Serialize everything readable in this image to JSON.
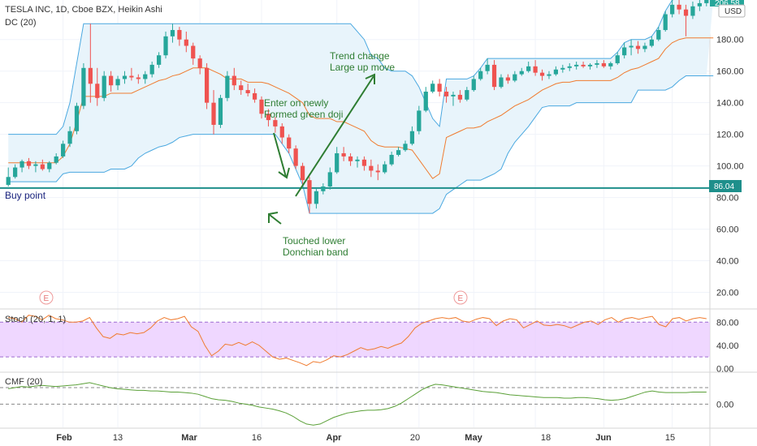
{
  "header": {
    "title": "TESLA INC, 1D, Cboe BZX, Heikin Ashi",
    "indicator": "DC (20)",
    "currency": "USD",
    "last_price_partial": "206.58"
  },
  "colors": {
    "up": "#26a69a",
    "down": "#ef5350",
    "donchian_band": "#4aa8e0",
    "donchian_fill": "#e8f4fb",
    "donchian_mid": "#f07b2f",
    "buy_line": "#1e8f8b",
    "annotation": "#2e7d32",
    "stoch": "#f07b2f",
    "stoch_band": "#e9c9ff",
    "cmf": "#5aa037",
    "axis_text": "#333333"
  },
  "annotations": {
    "buy_point": "Buy point",
    "buy_price": "86.04",
    "doji": [
      "Enter on newly",
      "Formed green doji"
    ],
    "trend": [
      "Trend change",
      "Large up move"
    ],
    "touched": [
      "Touched lower",
      "Donchian band"
    ],
    "earnings_marker": "E"
  },
  "chart_data": [
    {
      "type": "candlestick",
      "title": "TESLA INC, 1D, Cboe BZX, Heikin Ashi",
      "ylabel": "USD",
      "ylim": [
        10,
        205
      ],
      "yticks": [
        20,
        40,
        60,
        80,
        100,
        120,
        140,
        160,
        180
      ],
      "xticks": [
        "Feb",
        "13",
        "Mar",
        "16",
        "Apr",
        "20",
        "May",
        "18",
        "Jun",
        "15"
      ],
      "hline": 86.04,
      "candles": [
        {
          "o": 88,
          "h": 99,
          "l": 87,
          "c": 93
        },
        {
          "o": 93,
          "h": 101,
          "l": 92,
          "c": 99
        },
        {
          "o": 99,
          "h": 104,
          "l": 96,
          "c": 103
        },
        {
          "o": 103,
          "h": 105,
          "l": 98,
          "c": 100
        },
        {
          "o": 100,
          "h": 103,
          "l": 96,
          "c": 101
        },
        {
          "o": 101,
          "h": 104,
          "l": 97,
          "c": 98
        },
        {
          "o": 98,
          "h": 103,
          "l": 96,
          "c": 102
        },
        {
          "o": 102,
          "h": 108,
          "l": 101,
          "c": 106
        },
        {
          "o": 106,
          "h": 116,
          "l": 105,
          "c": 114
        },
        {
          "o": 114,
          "h": 125,
          "l": 112,
          "c": 122
        },
        {
          "o": 122,
          "h": 140,
          "l": 120,
          "c": 138
        },
        {
          "o": 138,
          "h": 165,
          "l": 136,
          "c": 162
        },
        {
          "o": 162,
          "h": 190,
          "l": 140,
          "c": 152
        },
        {
          "o": 152,
          "h": 162,
          "l": 138,
          "c": 143
        },
        {
          "o": 143,
          "h": 160,
          "l": 141,
          "c": 157
        },
        {
          "o": 157,
          "h": 160,
          "l": 147,
          "c": 151
        },
        {
          "o": 151,
          "h": 157,
          "l": 148,
          "c": 155
        },
        {
          "o": 155,
          "h": 160,
          "l": 152,
          "c": 157
        },
        {
          "o": 157,
          "h": 162,
          "l": 154,
          "c": 156
        },
        {
          "o": 156,
          "h": 158,
          "l": 152,
          "c": 155
        },
        {
          "o": 155,
          "h": 160,
          "l": 152,
          "c": 158
        },
        {
          "o": 158,
          "h": 166,
          "l": 156,
          "c": 164
        },
        {
          "o": 164,
          "h": 172,
          "l": 162,
          "c": 170
        },
        {
          "o": 170,
          "h": 185,
          "l": 168,
          "c": 182
        },
        {
          "o": 182,
          "h": 190,
          "l": 178,
          "c": 186
        },
        {
          "o": 186,
          "h": 188,
          "l": 176,
          "c": 180
        },
        {
          "o": 180,
          "h": 185,
          "l": 172,
          "c": 176
        },
        {
          "o": 176,
          "h": 178,
          "l": 164,
          "c": 168
        },
        {
          "o": 168,
          "h": 170,
          "l": 158,
          "c": 162
        },
        {
          "o": 162,
          "h": 165,
          "l": 136,
          "c": 140
        },
        {
          "o": 140,
          "h": 148,
          "l": 120,
          "c": 126
        },
        {
          "o": 126,
          "h": 145,
          "l": 124,
          "c": 143
        },
        {
          "o": 143,
          "h": 160,
          "l": 141,
          "c": 157
        },
        {
          "o": 157,
          "h": 162,
          "l": 148,
          "c": 151
        },
        {
          "o": 151,
          "h": 154,
          "l": 145,
          "c": 148
        },
        {
          "o": 148,
          "h": 152,
          "l": 144,
          "c": 146
        },
        {
          "o": 146,
          "h": 149,
          "l": 140,
          "c": 142
        },
        {
          "o": 142,
          "h": 144,
          "l": 130,
          "c": 133
        },
        {
          "o": 133,
          "h": 136,
          "l": 125,
          "c": 129
        },
        {
          "o": 129,
          "h": 131,
          "l": 121,
          "c": 125
        },
        {
          "o": 125,
          "h": 127,
          "l": 114,
          "c": 118
        },
        {
          "o": 118,
          "h": 120,
          "l": 108,
          "c": 111
        },
        {
          "o": 111,
          "h": 113,
          "l": 98,
          "c": 100
        },
        {
          "o": 100,
          "h": 102,
          "l": 88,
          "c": 91
        },
        {
          "o": 91,
          "h": 93,
          "l": 70,
          "c": 76
        },
        {
          "o": 76,
          "h": 86,
          "l": 73,
          "c": 84
        },
        {
          "o": 84,
          "h": 89,
          "l": 82,
          "c": 87
        },
        {
          "o": 87,
          "h": 99,
          "l": 85,
          "c": 96
        },
        {
          "o": 96,
          "h": 112,
          "l": 95,
          "c": 108
        },
        {
          "o": 108,
          "h": 112,
          "l": 103,
          "c": 106
        },
        {
          "o": 106,
          "h": 108,
          "l": 100,
          "c": 103
        },
        {
          "o": 103,
          "h": 106,
          "l": 99,
          "c": 104
        },
        {
          "o": 104,
          "h": 106,
          "l": 97,
          "c": 100
        },
        {
          "o": 100,
          "h": 104,
          "l": 93,
          "c": 97
        },
        {
          "o": 97,
          "h": 101,
          "l": 91,
          "c": 96
        },
        {
          "o": 96,
          "h": 103,
          "l": 95,
          "c": 101
        },
        {
          "o": 101,
          "h": 109,
          "l": 100,
          "c": 107
        },
        {
          "o": 107,
          "h": 112,
          "l": 106,
          "c": 110
        },
        {
          "o": 110,
          "h": 116,
          "l": 109,
          "c": 114
        },
        {
          "o": 114,
          "h": 125,
          "l": 113,
          "c": 122
        },
        {
          "o": 122,
          "h": 138,
          "l": 120,
          "c": 135
        },
        {
          "o": 135,
          "h": 150,
          "l": 134,
          "c": 147
        },
        {
          "o": 147,
          "h": 154,
          "l": 146,
          "c": 152
        },
        {
          "o": 152,
          "h": 155,
          "l": 144,
          "c": 147
        },
        {
          "o": 147,
          "h": 150,
          "l": 140,
          "c": 144
        },
        {
          "o": 144,
          "h": 147,
          "l": 138,
          "c": 145
        },
        {
          "o": 145,
          "h": 148,
          "l": 140,
          "c": 142
        },
        {
          "o": 142,
          "h": 150,
          "l": 141,
          "c": 148
        },
        {
          "o": 148,
          "h": 157,
          "l": 147,
          "c": 155
        },
        {
          "o": 155,
          "h": 162,
          "l": 154,
          "c": 160
        },
        {
          "o": 160,
          "h": 168,
          "l": 158,
          "c": 164
        },
        {
          "o": 164,
          "h": 167,
          "l": 148,
          "c": 150
        },
        {
          "o": 150,
          "h": 158,
          "l": 149,
          "c": 156
        },
        {
          "o": 156,
          "h": 158,
          "l": 152,
          "c": 154
        },
        {
          "o": 154,
          "h": 160,
          "l": 153,
          "c": 158
        },
        {
          "o": 158,
          "h": 162,
          "l": 157,
          "c": 160
        },
        {
          "o": 160,
          "h": 166,
          "l": 159,
          "c": 163
        },
        {
          "o": 163,
          "h": 167,
          "l": 157,
          "c": 159
        },
        {
          "o": 159,
          "h": 161,
          "l": 154,
          "c": 157
        },
        {
          "o": 157,
          "h": 160,
          "l": 155,
          "c": 158
        },
        {
          "o": 158,
          "h": 163,
          "l": 157,
          "c": 161
        },
        {
          "o": 161,
          "h": 164,
          "l": 159,
          "c": 162
        },
        {
          "o": 162,
          "h": 165,
          "l": 160,
          "c": 163
        },
        {
          "o": 163,
          "h": 166,
          "l": 161,
          "c": 164
        },
        {
          "o": 164,
          "h": 166,
          "l": 162,
          "c": 163
        },
        {
          "o": 163,
          "h": 165,
          "l": 161,
          "c": 164
        },
        {
          "o": 164,
          "h": 167,
          "l": 162,
          "c": 165
        },
        {
          "o": 165,
          "h": 167,
          "l": 162,
          "c": 163
        },
        {
          "o": 163,
          "h": 166,
          "l": 161,
          "c": 165
        },
        {
          "o": 165,
          "h": 172,
          "l": 164,
          "c": 170
        },
        {
          "o": 170,
          "h": 178,
          "l": 168,
          "c": 175
        },
        {
          "o": 175,
          "h": 180,
          "l": 170,
          "c": 176
        },
        {
          "o": 176,
          "h": 179,
          "l": 171,
          "c": 174
        },
        {
          "o": 174,
          "h": 178,
          "l": 172,
          "c": 176
        },
        {
          "o": 176,
          "h": 182,
          "l": 175,
          "c": 180
        },
        {
          "o": 180,
          "h": 188,
          "l": 179,
          "c": 186
        },
        {
          "o": 186,
          "h": 198,
          "l": 185,
          "c": 196
        },
        {
          "o": 196,
          "h": 205,
          "l": 194,
          "c": 202
        },
        {
          "o": 202,
          "h": 206,
          "l": 196,
          "c": 199
        },
        {
          "o": 199,
          "h": 202,
          "l": 182,
          "c": 195
        },
        {
          "o": 195,
          "h": 204,
          "l": 193,
          "c": 201
        },
        {
          "o": 201,
          "h": 205,
          "l": 198,
          "c": 203
        },
        {
          "o": 203,
          "h": 206,
          "l": 201,
          "c": 205
        }
      ],
      "donchian_upper": [
        120,
        120,
        120,
        120,
        120,
        120,
        120,
        120,
        125,
        140,
        165,
        190,
        190,
        190,
        190,
        190,
        190,
        190,
        190,
        190,
        190,
        190,
        190,
        190,
        190,
        190,
        190,
        190,
        190,
        190,
        190,
        190,
        190,
        190,
        190,
        190,
        190,
        190,
        190,
        190,
        190,
        190,
        190,
        190,
        190,
        190,
        190,
        190,
        190,
        190,
        190,
        185,
        180,
        170,
        168,
        162,
        160,
        160,
        160,
        157,
        150,
        140,
        130,
        125,
        155,
        155,
        155,
        155,
        157,
        162,
        168,
        168,
        168,
        168,
        168,
        168,
        168,
        168,
        168,
        168,
        168,
        168,
        168,
        168,
        168,
        168,
        168,
        168,
        168,
        172,
        178,
        180,
        180,
        180,
        182,
        188,
        198,
        205,
        206,
        206,
        206,
        206,
        206,
        206
      ],
      "donchian_lower": [
        90,
        90,
        90,
        90,
        90,
        90,
        90,
        90,
        95,
        96,
        96,
        96,
        96,
        96,
        96,
        98,
        98,
        98,
        100,
        105,
        108,
        110,
        112,
        113,
        115,
        118,
        119,
        120,
        120,
        120,
        120,
        120,
        120,
        120,
        120,
        120,
        120,
        120,
        120,
        120,
        114,
        108,
        98,
        88,
        70,
        70,
        70,
        70,
        70,
        70,
        70,
        70,
        70,
        70,
        70,
        70,
        70,
        70,
        70,
        70,
        70,
        70,
        70,
        73,
        82,
        85,
        88,
        91,
        91,
        91,
        93,
        95,
        98,
        108,
        115,
        120,
        125,
        131,
        137,
        138,
        138,
        138,
        138,
        140,
        140,
        140,
        140,
        140,
        140,
        140,
        140,
        140,
        148,
        148,
        148,
        148,
        148,
        150,
        154,
        157,
        157,
        157,
        157,
        157
      ],
      "donchian_mid": [
        102,
        102,
        102,
        102,
        102,
        102,
        102,
        102,
        106,
        114,
        128,
        144,
        144,
        144,
        144,
        146,
        146,
        146,
        146,
        148,
        150,
        152,
        154,
        155,
        157,
        158,
        160,
        162,
        162,
        162,
        160,
        158,
        155,
        155,
        155,
        153,
        153,
        153,
        152,
        150,
        148,
        146,
        143,
        140,
        132,
        130,
        130,
        130,
        128,
        128,
        126,
        124,
        122,
        116,
        113,
        112,
        112,
        112,
        111,
        110,
        104,
        98,
        92,
        95,
        118,
        120,
        122,
        124,
        124,
        125,
        128,
        130,
        132,
        135,
        138,
        140,
        142,
        145,
        148,
        150,
        152,
        153,
        153,
        154,
        154,
        154,
        154,
        154,
        154,
        156,
        159,
        161,
        162,
        164,
        166,
        168,
        174,
        178,
        180,
        181,
        181,
        181,
        181,
        181
      ]
    },
    {
      "type": "line",
      "title": "Stoch (20, 1, 1)",
      "ylim": [
        -5,
        100
      ],
      "yticks": [
        0,
        40,
        80
      ],
      "band": [
        20,
        80
      ],
      "series": [
        {
          "values": [
            88,
            86,
            80,
            92,
            90,
            84,
            92,
            86,
            84,
            80,
            80,
            82,
            88,
            70,
            55,
            52,
            60,
            58,
            62,
            60,
            62,
            70,
            82,
            88,
            84,
            86,
            90,
            72,
            64,
            40,
            22,
            30,
            42,
            40,
            45,
            40,
            46,
            40,
            30,
            20,
            16,
            18,
            14,
            10,
            5,
            12,
            10,
            15,
            22,
            20,
            24,
            30,
            36,
            32,
            34,
            38,
            35,
            40,
            44,
            55,
            70,
            78,
            82,
            86,
            88,
            86,
            88,
            82,
            80,
            85,
            88,
            86,
            74,
            82,
            86,
            84,
            70,
            76,
            82,
            75,
            74,
            76,
            74,
            70,
            75,
            80,
            82,
            76,
            84,
            88,
            80,
            86,
            88,
            85,
            88,
            90,
            76,
            72,
            86,
            88,
            82,
            86,
            88,
            86
          ]
        }
      ]
    },
    {
      "type": "line",
      "title": "CMF (20)",
      "ylim": [
        -0.42,
        0.55
      ],
      "yticks": [
        0
      ],
      "hlines": [
        0,
        0.3
      ],
      "series": [
        {
          "values": [
            0.28,
            0.3,
            0.32,
            0.31,
            0.33,
            0.34,
            0.33,
            0.32,
            0.33,
            0.34,
            0.35,
            0.37,
            0.39,
            0.36,
            0.33,
            0.3,
            0.28,
            0.27,
            0.26,
            0.25,
            0.25,
            0.24,
            0.24,
            0.23,
            0.22,
            0.22,
            0.21,
            0.2,
            0.18,
            0.14,
            0.1,
            0.08,
            0.07,
            0.05,
            0.02,
            0.0,
            -0.02,
            -0.05,
            -0.07,
            -0.09,
            -0.12,
            -0.16,
            -0.22,
            -0.3,
            -0.36,
            -0.38,
            -0.36,
            -0.3,
            -0.24,
            -0.2,
            -0.16,
            -0.14,
            -0.12,
            -0.11,
            -0.11,
            -0.1,
            -0.08,
            -0.04,
            0.02,
            0.1,
            0.18,
            0.26,
            0.32,
            0.36,
            0.35,
            0.33,
            0.31,
            0.29,
            0.27,
            0.25,
            0.23,
            0.22,
            0.21,
            0.19,
            0.17,
            0.16,
            0.15,
            0.14,
            0.13,
            0.12,
            0.12,
            0.12,
            0.11,
            0.11,
            0.12,
            0.12,
            0.11,
            0.1,
            0.08,
            0.07,
            0.08,
            0.1,
            0.14,
            0.18,
            0.22,
            0.24,
            0.22,
            0.21,
            0.21,
            0.21,
            0.21,
            0.22,
            0.22,
            0.22
          ]
        }
      ]
    }
  ]
}
